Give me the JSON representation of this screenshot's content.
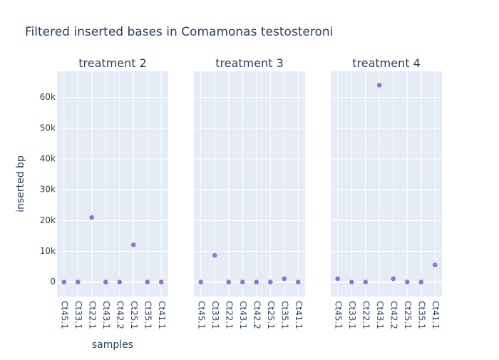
{
  "chart_data": {
    "type": "scatter",
    "title": "Filtered inserted bases in Comamonas testosteroni",
    "xlabel": "samples",
    "ylabel": "inserted bp",
    "ylim": [
      -4700,
      68500
    ],
    "yticks": [
      0,
      10000,
      20000,
      30000,
      40000,
      50000,
      60000
    ],
    "ytick_labels": [
      "0",
      "10k",
      "20k",
      "30k",
      "40k",
      "50k",
      "60k"
    ],
    "categories": [
      "Ct45.1",
      "Ct33.1",
      "Ct22.1",
      "Ct43.1",
      "Ct42.2",
      "Ct25.1",
      "Ct35.1",
      "Ct41.1"
    ],
    "grid": true,
    "colors": {
      "marker": "#9370db",
      "plot_bg": "#e5ecf6",
      "grid": "#ffffff",
      "text": "#2a3f5f"
    },
    "panels": [
      {
        "title": "treatment 2",
        "values": [
          0,
          0,
          21000,
          0,
          0,
          12100,
          0,
          0
        ]
      },
      {
        "title": "treatment 3",
        "values": [
          0,
          8700,
          0,
          0,
          0,
          0,
          1100,
          0
        ]
      },
      {
        "title": "treatment 4",
        "values": [
          1100,
          0,
          0,
          64000,
          1100,
          0,
          0,
          5600
        ]
      }
    ]
  }
}
